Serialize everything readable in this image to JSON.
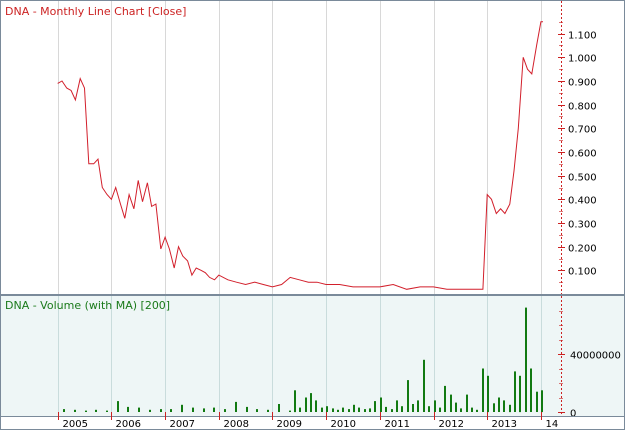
{
  "chart_data": [
    {
      "type": "line",
      "title": "DNA - Monthly Line Chart [Close]",
      "y_ticks": [
        "0.100",
        "0.200",
        "0.300",
        "0.400",
        "0.500",
        "0.600",
        "0.700",
        "0.800",
        "0.900",
        "1.000",
        "1.100"
      ],
      "ylim": [
        0,
        1.2
      ],
      "xlim": [
        2004.0,
        2014.3
      ],
      "grid": "vertical",
      "colors": {
        "line": "#d21f2b",
        "title": "#cc2222",
        "axis": "#cc2222",
        "grid": "#d8d8d8",
        "background": "#ffffff"
      },
      "series": [
        {
          "x": [
            2005.0,
            2005.08,
            2005.17,
            2005.25,
            2005.33,
            2005.42,
            2005.5,
            2005.58,
            2005.67,
            2005.75,
            2005.83,
            2005.92,
            2006.0,
            2006.08,
            2006.17,
            2006.25,
            2006.33,
            2006.42,
            2006.5,
            2006.58,
            2006.67,
            2006.75,
            2006.83,
            2006.92,
            2007.0,
            2007.08,
            2007.17,
            2007.25,
            2007.33,
            2007.42,
            2007.5,
            2007.58,
            2007.67,
            2007.75,
            2007.83,
            2007.92,
            2008.0,
            2008.17,
            2008.33,
            2008.5,
            2008.67,
            2008.83,
            2009.0,
            2009.17,
            2009.33,
            2009.5,
            2009.67,
            2009.83,
            2010.0,
            2010.25,
            2010.5,
            2010.75,
            2011.0,
            2011.25,
            2011.5,
            2011.75,
            2012.0,
            2012.25,
            2012.5,
            2012.75,
            2012.92,
            2013.0,
            2013.08,
            2013.17,
            2013.25,
            2013.33,
            2013.42,
            2013.5,
            2013.58,
            2013.67,
            2013.75,
            2013.83,
            2013.92,
            2014.0,
            2014.04
          ],
          "y": [
            0.89,
            0.9,
            0.87,
            0.86,
            0.82,
            0.91,
            0.87,
            0.55,
            0.55,
            0.57,
            0.45,
            0.42,
            0.4,
            0.45,
            0.38,
            0.32,
            0.42,
            0.36,
            0.48,
            0.39,
            0.47,
            0.37,
            0.38,
            0.19,
            0.24,
            0.19,
            0.11,
            0.2,
            0.16,
            0.14,
            0.08,
            0.11,
            0.1,
            0.09,
            0.07,
            0.06,
            0.08,
            0.06,
            0.05,
            0.04,
            0.05,
            0.04,
            0.03,
            0.04,
            0.07,
            0.06,
            0.05,
            0.05,
            0.04,
            0.04,
            0.03,
            0.03,
            0.03,
            0.04,
            0.02,
            0.03,
            0.03,
            0.02,
            0.02,
            0.02,
            0.02,
            0.42,
            0.4,
            0.34,
            0.36,
            0.34,
            0.38,
            0.52,
            0.7,
            1.0,
            0.95,
            0.93,
            1.05,
            1.15,
            1.15
          ]
        }
      ]
    },
    {
      "type": "bar",
      "title": "DNA - Volume (with MA) [200]",
      "y_ticks": [
        "0",
        "40000000"
      ],
      "ylim": [
        0,
        80000000
      ],
      "xlim": [
        2004.0,
        2014.3
      ],
      "grid": "vertical",
      "colors": {
        "bar": "#127a12",
        "title": "#1a7a1a",
        "axis": "#cc2222",
        "grid": "#c9dcdc",
        "background": "#eef6f6"
      },
      "x": [
        2005.1,
        2005.3,
        2005.5,
        2005.7,
        2005.9,
        2006.1,
        2006.3,
        2006.5,
        2006.7,
        2006.9,
        2007.1,
        2007.3,
        2007.5,
        2007.7,
        2007.9,
        2008.1,
        2008.3,
        2008.5,
        2008.7,
        2008.9,
        2009.1,
        2009.3,
        2009.4,
        2009.5,
        2009.6,
        2009.7,
        2009.8,
        2009.9,
        2010.0,
        2010.1,
        2010.2,
        2010.3,
        2010.4,
        2010.5,
        2010.6,
        2010.7,
        2010.8,
        2010.9,
        2011.0,
        2011.1,
        2011.2,
        2011.3,
        2011.4,
        2011.5,
        2011.6,
        2011.7,
        2011.8,
        2011.9,
        2012.0,
        2012.1,
        2012.2,
        2012.3,
        2012.4,
        2012.5,
        2012.6,
        2012.7,
        2012.8,
        2012.9,
        2013.0,
        2013.1,
        2013.2,
        2013.3,
        2013.4,
        2013.5,
        2013.6,
        2013.7,
        2013.8,
        2013.9,
        2014.0
      ],
      "values": [
        2000000,
        1500000,
        1000000,
        1500000,
        1000000,
        7500000,
        3500000,
        3000000,
        1500000,
        2000000,
        2000000,
        5000000,
        3000000,
        2500000,
        3000000,
        2000000,
        7000000,
        3500000,
        2000000,
        1500000,
        5500000,
        1000000,
        15000000,
        3000000,
        10000000,
        13000000,
        8000000,
        3000000,
        4000000,
        2500000,
        1500000,
        3000000,
        2000000,
        5000000,
        3000000,
        2000000,
        2500000,
        7500000,
        10000000,
        3500000,
        2000000,
        8000000,
        4000000,
        22000000,
        5500000,
        8000000,
        36000000,
        4000000,
        8000000,
        3000000,
        18000000,
        12000000,
        6500000,
        2500000,
        12000000,
        3000000,
        1500000,
        30000000,
        25000000,
        6000000,
        10000000,
        8000000,
        5000000,
        28000000,
        25000000,
        72000000,
        30000000,
        14000000,
        15000000
      ]
    }
  ],
  "x_axis": {
    "tick_labels": [
      "2005",
      "2006",
      "2007",
      "2008",
      "2009",
      "2010",
      "2011",
      "2012",
      "2013",
      "14"
    ]
  }
}
